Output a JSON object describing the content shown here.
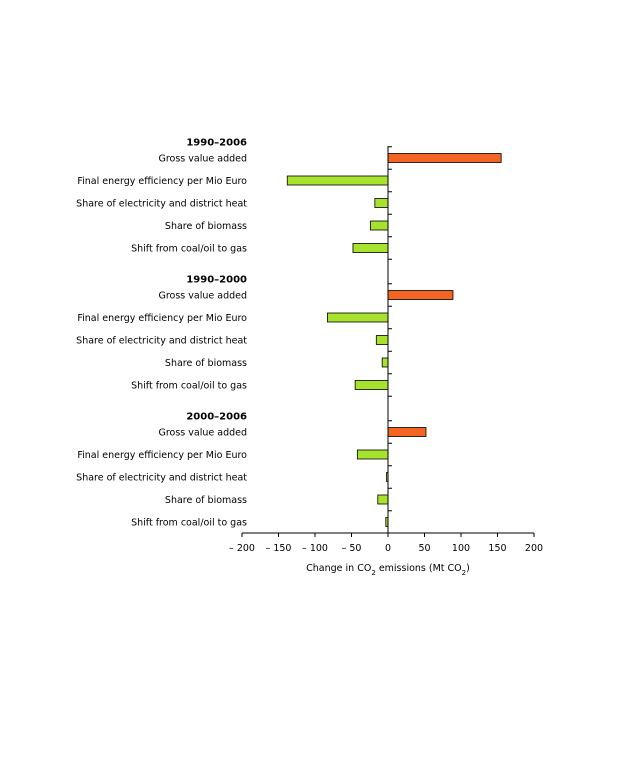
{
  "chart_data": {
    "type": "bar",
    "orientation": "horizontal",
    "xlabel": {
      "parts": [
        "Change in CO",
        "2",
        " emissions (Mt CO",
        "2",
        ")"
      ]
    },
    "xlim": [
      -200,
      200
    ],
    "xticks": [
      -200,
      -150,
      -100,
      -50,
      0,
      50,
      100,
      150,
      200
    ],
    "xtick_labels": [
      "– 200",
      "– 150",
      "– 100",
      "– 50",
      "0",
      "50",
      "100",
      "150",
      "200"
    ],
    "grid": false,
    "groups": [
      {
        "label": "1990–2006",
        "items": [
          {
            "label": "Gross value added",
            "value": 155
          },
          {
            "label": "Final energy efficiency per Mio Euro",
            "value": -138
          },
          {
            "label": "Share of electricity and district heat",
            "value": -18
          },
          {
            "label": "Share of biomass",
            "value": -24
          },
          {
            "label": "Shift from coal/oil to gas",
            "value": -48
          }
        ]
      },
      {
        "label": "1990–2000",
        "items": [
          {
            "label": "Gross value added",
            "value": 89
          },
          {
            "label": "Final energy efficiency per Mio Euro",
            "value": -83
          },
          {
            "label": "Share of electricity and district heat",
            "value": -16
          },
          {
            "label": "Share of biomass",
            "value": -8
          },
          {
            "label": "Shift from coal/oil to gas",
            "value": -45
          }
        ]
      },
      {
        "label": "2000–2006",
        "items": [
          {
            "label": "Gross value added",
            "value": 52
          },
          {
            "label": "Final energy efficiency per Mio Euro",
            "value": -42
          },
          {
            "label": "Share of electricity and district heat",
            "value": -2
          },
          {
            "label": "Share of biomass",
            "value": -14
          },
          {
            "label": "Shift from coal/oil to gas",
            "value": -3
          }
        ]
      }
    ],
    "colors": {
      "positive": "#f26522",
      "negative": "#a6e22e",
      "bar_stroke": "#000000",
      "axis": "#000000"
    }
  }
}
